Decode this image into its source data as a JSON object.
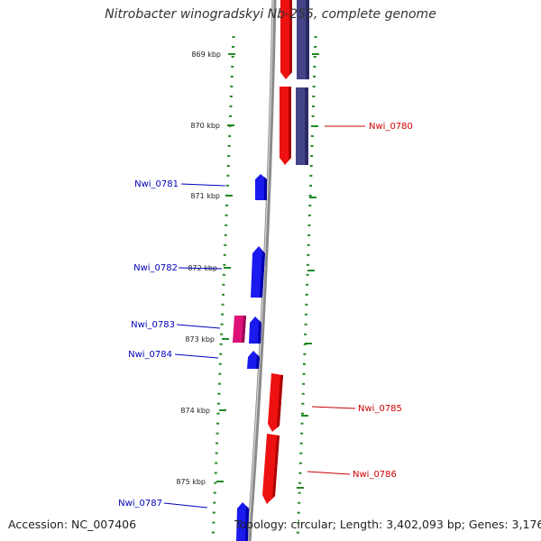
{
  "title": "Nitrobacter winogradskyi Nb-255, complete genome",
  "footer": {
    "accession": "Accession: NC_007406",
    "topology": "Topology: circular; Length: 3,402,093 bp; Genes: 3,176"
  },
  "colors": {
    "forward": "#ee1111",
    "reverse": "#1a1aee",
    "rna": "#dd1177",
    "cds_track": "#444488",
    "backbone": "#888888",
    "tick": "#228822",
    "forward_label": "#cc0000",
    "reverse_label": "#0000bb"
  },
  "scale": {
    "ticks": [
      {
        "label": "869 kbp",
        "kbp": 869
      },
      {
        "label": "870 kbp",
        "kbp": 870
      },
      {
        "label": "871 kbp",
        "kbp": 871
      },
      {
        "label": "872 kbp",
        "kbp": 872
      },
      {
        "label": "873 kbp",
        "kbp": 873
      },
      {
        "label": "874 kbp",
        "kbp": 874
      },
      {
        "label": "875 kbp",
        "kbp": 875
      }
    ]
  },
  "genes": [
    {
      "name": "Nwi_0780",
      "strand": "forward"
    },
    {
      "name": "Nwi_0781",
      "strand": "reverse"
    },
    {
      "name": "Nwi_0782",
      "strand": "reverse"
    },
    {
      "name": "Nwi_0783",
      "strand": "reverse"
    },
    {
      "name": "Nwi_0784",
      "strand": "reverse"
    },
    {
      "name": "Nwi_0785",
      "strand": "forward"
    },
    {
      "name": "Nwi_0786",
      "strand": "forward"
    },
    {
      "name": "Nwi_0787",
      "strand": "reverse"
    }
  ]
}
